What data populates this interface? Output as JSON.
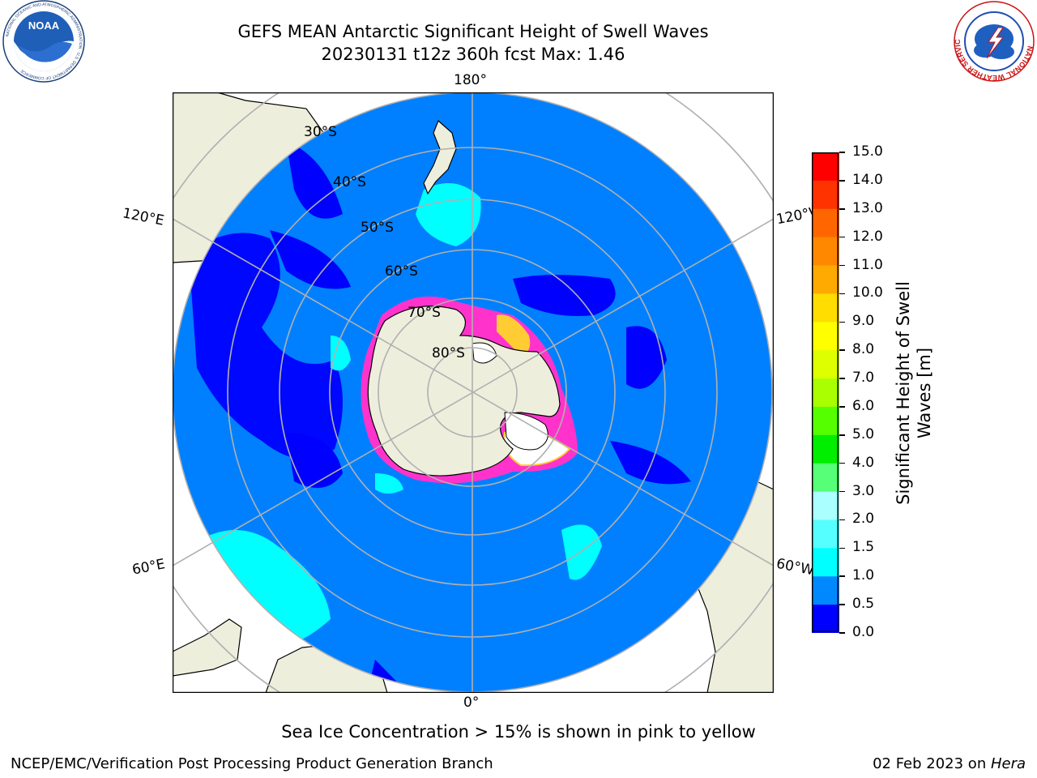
{
  "header": {
    "title_line1": "GEFS MEAN Antarctic Significant Height of Swell Waves",
    "title_line2": "20230131 t12z 360h fcst   Max: 1.46"
  },
  "logos": {
    "left": {
      "name": "NOAA",
      "ring_text": "NATIONAL OCEANIC AND ATMOSPHERIC ADMINISTRATION · U.S. DEPARTMENT OF COMMERCE"
    },
    "right": {
      "name": "NATIONAL WEATHER SERVICE"
    }
  },
  "map": {
    "projection": "south-polar-stereographic",
    "longitude_labels": {
      "top": "180°",
      "bottom": "0°",
      "upper_left": "120°E",
      "lower_left": "60°E",
      "upper_right": "120°W",
      "lower_right": "60°W"
    },
    "latitude_labels": [
      "30°S",
      "40°S",
      "50°S",
      "60°S",
      "70°S",
      "80°S"
    ],
    "colors": {
      "land": "#eeeedd",
      "ice_sheet_white": "#ffffff",
      "swell_0_0_5": "#0000ff",
      "swell_0_5_1_0": "#0080ff",
      "swell_1_0_1_5": "#00ffff",
      "sea_ice_edge": "#ff33cc",
      "graticule": "#b0b0b0"
    }
  },
  "colorbar": {
    "label": "Significant Height of Swell Waves [m]",
    "ticks": [
      "15.0",
      "14.0",
      "13.0",
      "12.0",
      "11.0",
      "10.0",
      "9.0",
      "8.0",
      "7.0",
      "6.0",
      "5.0",
      "4.0",
      "3.0",
      "2.0",
      "1.5",
      "1.0",
      "0.5",
      "0.0"
    ],
    "segments": [
      {
        "from": 14.0,
        "to": 15.0,
        "color": "#ff0000"
      },
      {
        "from": 13.0,
        "to": 14.0,
        "color": "#ff3300"
      },
      {
        "from": 12.0,
        "to": 13.0,
        "color": "#ff6600"
      },
      {
        "from": 11.0,
        "to": 12.0,
        "color": "#ff8800"
      },
      {
        "from": 10.0,
        "to": 11.0,
        "color": "#ffaa00"
      },
      {
        "from": 9.0,
        "to": 10.0,
        "color": "#ffdd00"
      },
      {
        "from": 8.0,
        "to": 9.0,
        "color": "#ffff00"
      },
      {
        "from": 7.0,
        "to": 8.0,
        "color": "#ddff00"
      },
      {
        "from": 6.0,
        "to": 7.0,
        "color": "#aaff00"
      },
      {
        "from": 5.0,
        "to": 6.0,
        "color": "#55ff00"
      },
      {
        "from": 4.0,
        "to": 5.0,
        "color": "#00ee00"
      },
      {
        "from": 3.0,
        "to": 4.0,
        "color": "#55ff77"
      },
      {
        "from": 2.0,
        "to": 3.0,
        "color": "#aaffff"
      },
      {
        "from": 1.5,
        "to": 2.0,
        "color": "#55ffff"
      },
      {
        "from": 1.0,
        "to": 1.5,
        "color": "#00ffff"
      },
      {
        "from": 0.5,
        "to": 1.0,
        "color": "#0088ff"
      },
      {
        "from": 0.0,
        "to": 0.5,
        "color": "#0000ff"
      }
    ]
  },
  "caption": "Sea Ice Concentration > 15% is shown in pink to yellow",
  "footer": {
    "left": "NCEP/EMC/Verification Post Processing Product Generation Branch",
    "right_prefix": "02 Feb 2023 on ",
    "right_host": "Hera"
  }
}
